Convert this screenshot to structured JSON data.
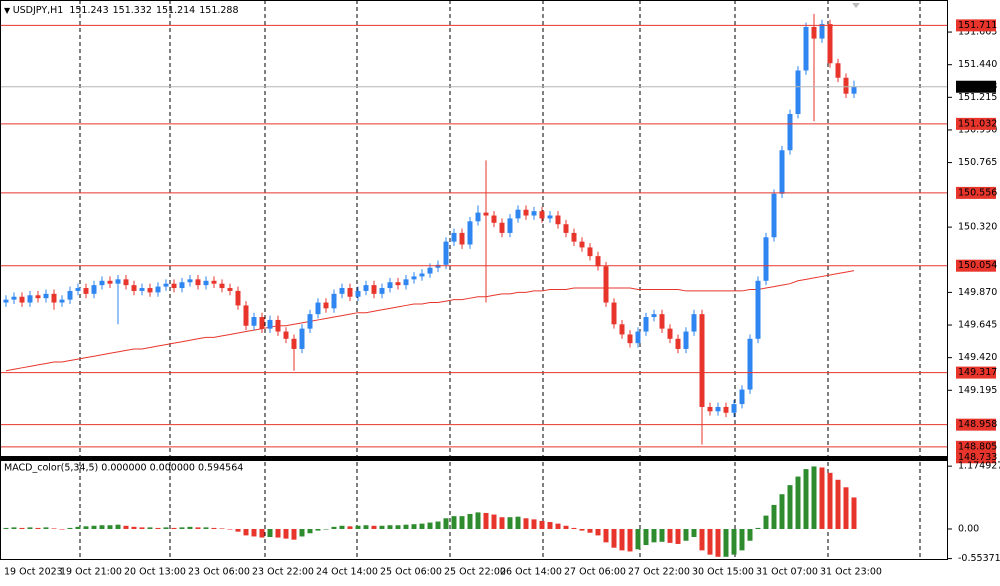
{
  "chart_data": [
    {
      "type": "candlestick",
      "title": "USDJPY,H1",
      "header_values": [
        151.243,
        151.332,
        151.214,
        151.288
      ],
      "categories": [
        "19 Oct 2023",
        null,
        null,
        null,
        null,
        null,
        null,
        "19 Oct 21:00",
        null,
        null,
        null,
        null,
        null,
        null,
        null,
        "20 Oct 13:00",
        null,
        null,
        null,
        null,
        null,
        null,
        null,
        "23 Oct 06:00",
        null,
        null,
        null,
        null,
        null,
        null,
        null,
        "23 Oct 22:00",
        null,
        null,
        null,
        null,
        null,
        null,
        null,
        "24 Oct 14:00",
        null,
        null,
        null,
        null,
        null,
        null,
        null,
        "25 Oct 06:00",
        null,
        null,
        null,
        null,
        null,
        null,
        null,
        "25 Oct 22:00",
        null,
        null,
        null,
        null,
        null,
        null,
        "26 Oct 14:00",
        null,
        null,
        null,
        null,
        null,
        null,
        null,
        "27 Oct 06:00",
        null,
        null,
        null,
        null,
        null,
        null,
        null,
        "27 Oct 22:00",
        null,
        null,
        null,
        null,
        null,
        null,
        null,
        "30 Oct 15:00",
        null,
        null,
        null,
        null,
        null,
        null,
        null,
        "31 Oct 07:00",
        null,
        null,
        null,
        null,
        null,
        null,
        null,
        "31 Oct 23:00",
        null,
        null,
        null,
        null
      ],
      "ohlc": [
        [
          149.8,
          149.85,
          149.77,
          149.82
        ],
        [
          149.82,
          149.87,
          149.79,
          149.84
        ],
        [
          149.84,
          149.87,
          149.77,
          149.8
        ],
        [
          149.8,
          149.88,
          149.77,
          149.85
        ],
        [
          149.85,
          149.88,
          149.8,
          149.83
        ],
        [
          149.83,
          149.89,
          149.8,
          149.86
        ],
        [
          149.86,
          149.89,
          149.75,
          149.8
        ],
        [
          149.8,
          149.85,
          149.77,
          149.82
        ],
        [
          149.82,
          149.91,
          149.79,
          149.88
        ],
        [
          149.88,
          149.93,
          149.85,
          149.9
        ],
        [
          149.9,
          149.93,
          149.83,
          149.86
        ],
        [
          149.86,
          149.95,
          149.83,
          149.92
        ],
        [
          149.92,
          149.98,
          149.89,
          149.95
        ],
        [
          149.95,
          149.98,
          149.9,
          149.93
        ],
        [
          149.93,
          149.99,
          149.65,
          149.96
        ],
        [
          149.96,
          149.99,
          149.89,
          149.92
        ],
        [
          149.92,
          149.95,
          149.85,
          149.88
        ],
        [
          149.88,
          149.93,
          149.85,
          149.9
        ],
        [
          149.9,
          149.93,
          149.84,
          149.87
        ],
        [
          149.87,
          149.94,
          149.84,
          149.91
        ],
        [
          149.91,
          149.96,
          149.88,
          149.93
        ],
        [
          149.93,
          149.96,
          149.87,
          149.9
        ],
        [
          149.9,
          149.97,
          149.87,
          149.94
        ],
        [
          149.94,
          149.99,
          149.91,
          149.96
        ],
        [
          149.96,
          149.99,
          149.89,
          149.92
        ],
        [
          149.92,
          149.98,
          149.89,
          149.95
        ],
        [
          149.95,
          149.98,
          149.9,
          149.93
        ],
        [
          149.93,
          149.96,
          149.87,
          149.9
        ],
        [
          149.9,
          149.93,
          149.85,
          149.88
        ],
        [
          149.88,
          149.91,
          149.75,
          149.78
        ],
        [
          149.78,
          149.81,
          149.61,
          149.64
        ],
        [
          149.64,
          149.73,
          149.61,
          149.7
        ],
        [
          149.7,
          149.73,
          149.59,
          149.62
        ],
        [
          149.62,
          149.71,
          149.59,
          149.68
        ],
        [
          149.68,
          149.71,
          149.57,
          149.6
        ],
        [
          149.6,
          149.63,
          149.52,
          149.55
        ],
        [
          149.55,
          149.58,
          149.33,
          149.48
        ],
        [
          149.48,
          149.65,
          149.45,
          149.62
        ],
        [
          149.62,
          149.75,
          149.59,
          149.72
        ],
        [
          149.72,
          149.83,
          149.69,
          149.8
        ],
        [
          149.8,
          149.83,
          149.73,
          149.76
        ],
        [
          149.76,
          149.89,
          149.73,
          149.86
        ],
        [
          149.86,
          149.93,
          149.83,
          149.9
        ],
        [
          149.9,
          149.93,
          149.81,
          149.84
        ],
        [
          149.84,
          149.91,
          149.81,
          149.88
        ],
        [
          149.88,
          149.95,
          149.85,
          149.92
        ],
        [
          149.92,
          149.95,
          149.83,
          149.86
        ],
        [
          149.86,
          149.93,
          149.83,
          149.9
        ],
        [
          149.9,
          149.97,
          149.87,
          149.94
        ],
        [
          149.94,
          149.97,
          149.89,
          149.92
        ],
        [
          149.92,
          149.99,
          149.89,
          149.96
        ],
        [
          149.96,
          150.01,
          149.93,
          149.98
        ],
        [
          149.98,
          150.03,
          149.95,
          150.0
        ],
        [
          150.0,
          150.07,
          149.97,
          150.04
        ],
        [
          150.04,
          150.09,
          150.01,
          150.06
        ],
        [
          150.06,
          150.25,
          150.03,
          150.22
        ],
        [
          150.22,
          150.31,
          150.19,
          150.28
        ],
        [
          150.28,
          150.31,
          150.17,
          150.2
        ],
        [
          150.2,
          150.39,
          150.17,
          150.36
        ],
        [
          150.36,
          150.47,
          150.33,
          150.42
        ],
        [
          150.42,
          150.78,
          149.8,
          150.4
        ],
        [
          150.4,
          150.43,
          150.32,
          150.35
        ],
        [
          150.35,
          150.38,
          150.25,
          150.28
        ],
        [
          150.28,
          150.41,
          150.25,
          150.38
        ],
        [
          150.38,
          150.47,
          150.35,
          150.44
        ],
        [
          150.44,
          150.47,
          150.37,
          150.4
        ],
        [
          150.4,
          150.46,
          150.37,
          150.43
        ],
        [
          150.43,
          150.46,
          150.35,
          150.38
        ],
        [
          150.38,
          150.43,
          150.35,
          150.4
        ],
        [
          150.4,
          150.43,
          150.31,
          150.34
        ],
        [
          150.34,
          150.37,
          150.25,
          150.28
        ],
        [
          150.28,
          150.31,
          150.19,
          150.22
        ],
        [
          150.22,
          150.25,
          150.15,
          150.18
        ],
        [
          150.18,
          150.21,
          150.09,
          150.12
        ],
        [
          150.12,
          150.15,
          150.02,
          150.05
        ],
        [
          150.05,
          150.08,
          149.77,
          149.8
        ],
        [
          149.8,
          149.83,
          149.62,
          149.65
        ],
        [
          149.65,
          149.68,
          149.55,
          149.58
        ],
        [
          149.58,
          149.61,
          149.49,
          149.52
        ],
        [
          149.52,
          149.63,
          149.49,
          149.6
        ],
        [
          149.6,
          149.73,
          149.57,
          149.7
        ],
        [
          149.7,
          149.75,
          149.67,
          149.72
        ],
        [
          149.72,
          149.75,
          149.59,
          149.62
        ],
        [
          149.62,
          149.65,
          149.52,
          149.55
        ],
        [
          149.55,
          149.58,
          149.45,
          149.48
        ],
        [
          149.48,
          149.63,
          149.45,
          149.6
        ],
        [
          149.6,
          149.75,
          149.57,
          149.72
        ],
        [
          149.72,
          149.75,
          148.82,
          149.08
        ],
        [
          149.08,
          149.11,
          149.02,
          149.05
        ],
        [
          149.05,
          149.11,
          149.02,
          149.08
        ],
        [
          149.08,
          149.11,
          149.01,
          149.04
        ],
        [
          149.04,
          149.13,
          149.01,
          149.1
        ],
        [
          149.1,
          149.23,
          149.07,
          149.2
        ],
        [
          149.2,
          149.58,
          149.17,
          149.55
        ],
        [
          149.55,
          149.98,
          149.52,
          149.95
        ],
        [
          149.95,
          150.28,
          149.92,
          150.25
        ],
        [
          150.25,
          150.58,
          150.22,
          150.55
        ],
        [
          150.55,
          150.88,
          150.52,
          150.85
        ],
        [
          150.85,
          151.13,
          150.82,
          151.1
        ],
        [
          151.1,
          151.43,
          151.07,
          151.4
        ],
        [
          151.4,
          151.73,
          151.37,
          151.7
        ],
        [
          151.7,
          151.79,
          151.05,
          151.62
        ],
        [
          151.62,
          151.75,
          151.59,
          151.72
        ],
        [
          151.72,
          151.75,
          151.42,
          151.45
        ],
        [
          151.45,
          151.48,
          151.32,
          151.35
        ],
        [
          151.35,
          151.38,
          151.21,
          151.24
        ],
        [
          151.24,
          151.33,
          151.21,
          151.29
        ]
      ],
      "ma_values": [
        149.33,
        149.34,
        149.35,
        149.36,
        149.37,
        149.38,
        149.39,
        149.39,
        149.4,
        149.41,
        149.42,
        149.43,
        149.44,
        149.45,
        149.46,
        149.47,
        149.48,
        149.48,
        149.49,
        149.5,
        149.51,
        149.52,
        149.53,
        149.54,
        149.55,
        149.56,
        149.56,
        149.57,
        149.58,
        149.59,
        149.6,
        149.61,
        149.62,
        149.63,
        149.64,
        149.64,
        149.65,
        149.66,
        149.67,
        149.68,
        149.69,
        149.7,
        149.71,
        149.72,
        149.73,
        149.73,
        149.74,
        149.75,
        149.76,
        149.77,
        149.78,
        149.79,
        149.79,
        149.8,
        149.8,
        149.81,
        149.82,
        149.82,
        149.83,
        149.84,
        149.84,
        149.85,
        149.86,
        149.86,
        149.87,
        149.87,
        149.88,
        149.88,
        149.89,
        149.89,
        149.89,
        149.9,
        149.9,
        149.9,
        149.9,
        149.9,
        149.9,
        149.9,
        149.9,
        149.89,
        149.89,
        149.89,
        149.89,
        149.89,
        149.89,
        149.88,
        149.88,
        149.88,
        149.88,
        149.88,
        149.88,
        149.88,
        149.88,
        149.89,
        149.89,
        149.9,
        149.91,
        149.92,
        149.93,
        149.95,
        149.96,
        149.97,
        149.98,
        149.99,
        150.0,
        150.01,
        150.02
      ],
      "ma_color": "#e8352c",
      "up_color": "#2f86f0",
      "down_color": "#e8352c",
      "levels": [
        151.711,
        151.032,
        150.556,
        150.054,
        149.317,
        148.958,
        148.805,
        148.733
      ],
      "level_color": "#e8352c",
      "last_price": 151.288,
      "ylim": [
        148.735,
        151.886
      ],
      "yticks": [
        151.665,
        {
          "value": 151.44,
          "label": "151.440"
        },
        151.215,
        {
          "value": 150.99,
          "label": "150.990"
        },
        150.765,
        {
          "value": 150.32,
          "label": "150.320"
        },
        {
          "value": 149.87,
          "label": "149.870"
        },
        149.645,
        {
          "value": 149.42,
          "label": "149.420"
        },
        149.195
      ]
    },
    {
      "type": "macd",
      "title": "MACD_color(5,34,5) 0.000000 0.000000 0.594564",
      "values": [
        0.02,
        0.03,
        0.02,
        0.03,
        0.02,
        0.03,
        0.01,
        0.0,
        0.02,
        0.04,
        0.05,
        0.06,
        0.07,
        0.07,
        0.08,
        0.06,
        0.04,
        0.03,
        0.03,
        0.02,
        0.03,
        0.02,
        0.03,
        0.04,
        0.03,
        0.03,
        0.02,
        0.01,
        0.0,
        -0.05,
        -0.12,
        -0.14,
        -0.16,
        -0.15,
        -0.16,
        -0.18,
        -0.2,
        -0.14,
        -0.08,
        -0.03,
        0.0,
        0.04,
        0.06,
        0.05,
        0.06,
        0.07,
        0.06,
        0.06,
        0.07,
        0.07,
        0.08,
        0.09,
        0.1,
        0.12,
        0.14,
        0.2,
        0.24,
        0.24,
        0.28,
        0.31,
        0.3,
        0.27,
        0.22,
        0.22,
        0.23,
        0.2,
        0.18,
        0.15,
        0.13,
        0.1,
        0.06,
        0.02,
        -0.03,
        -0.07,
        -0.12,
        -0.25,
        -0.35,
        -0.4,
        -0.42,
        -0.38,
        -0.3,
        -0.25,
        -0.24,
        -0.26,
        -0.28,
        -0.22,
        -0.15,
        -0.4,
        -0.48,
        -0.52,
        -0.52,
        -0.48,
        -0.4,
        -0.22,
        0.02,
        0.25,
        0.45,
        0.65,
        0.82,
        0.98,
        1.12,
        1.17,
        1.15,
        1.05,
        0.92,
        0.78,
        0.59
      ],
      "up_color": "#2e8b2e",
      "down_color": "#e8352c",
      "ylim": [
        -0.58,
        1.29
      ],
      "yticks": [
        1.174927,
        {
          "value": 0,
          "label": "0.00"
        },
        -0.553718
      ]
    }
  ]
}
